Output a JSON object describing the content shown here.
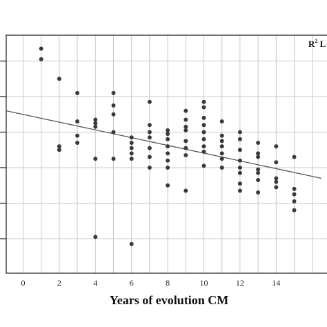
{
  "chart_data": {
    "type": "scatter",
    "xlabel": "Years of evolution CM",
    "ylabel": "",
    "x_ticks": [
      "0",
      "2",
      "4",
      "6",
      "8",
      "10",
      "12",
      "14"
    ],
    "xlim": [
      -1,
      16.5
    ],
    "ylim": [
      -1.2,
      6.2
    ],
    "grid": true,
    "annotation": {
      "text": "R",
      "sup": "2",
      "suffix": " L"
    },
    "trendline": {
      "x": [
        -1,
        16.5
      ],
      "y": [
        3.6,
        1.7
      ]
    },
    "colors": {
      "point": "#3a3a3a",
      "line": "#555555",
      "grid": "#c8c8c8",
      "frame": "#1a1a1a"
    },
    "points": [
      {
        "x": 1,
        "y": 5.35
      },
      {
        "x": 1,
        "y": 5.05
      },
      {
        "x": 2,
        "y": 4.5
      },
      {
        "x": 2,
        "y": 2.6
      },
      {
        "x": 2,
        "y": 2.5
      },
      {
        "x": 3,
        "y": 4.1
      },
      {
        "x": 3,
        "y": 3.3
      },
      {
        "x": 3,
        "y": 2.9
      },
      {
        "x": 3,
        "y": 2.7
      },
      {
        "x": 4,
        "y": 3.35
      },
      {
        "x": 4,
        "y": 3.25
      },
      {
        "x": 4,
        "y": 3.15
      },
      {
        "x": 4,
        "y": 2.25
      },
      {
        "x": 4,
        "y": 0.05
      },
      {
        "x": 5,
        "y": 4.1
      },
      {
        "x": 5,
        "y": 3.75
      },
      {
        "x": 5,
        "y": 3.5
      },
      {
        "x": 5,
        "y": 3.0
      },
      {
        "x": 5,
        "y": 2.25
      },
      {
        "x": 6,
        "y": 2.85
      },
      {
        "x": 6,
        "y": 2.7
      },
      {
        "x": 6,
        "y": 2.55
      },
      {
        "x": 6,
        "y": 2.4
      },
      {
        "x": 6,
        "y": 2.25
      },
      {
        "x": 6,
        "y": -0.15
      },
      {
        "x": 7,
        "y": 3.85
      },
      {
        "x": 7,
        "y": 3.2
      },
      {
        "x": 7,
        "y": 3.0
      },
      {
        "x": 7,
        "y": 2.85
      },
      {
        "x": 7,
        "y": 2.55
      },
      {
        "x": 7,
        "y": 2.3
      },
      {
        "x": 7,
        "y": 2.0
      },
      {
        "x": 8,
        "y": 3.05
      },
      {
        "x": 8,
        "y": 2.95
      },
      {
        "x": 8,
        "y": 2.8
      },
      {
        "x": 8,
        "y": 2.6
      },
      {
        "x": 8,
        "y": 2.4
      },
      {
        "x": 8,
        "y": 2.2
      },
      {
        "x": 8,
        "y": 2.0
      },
      {
        "x": 8,
        "y": 1.5
      },
      {
        "x": 9,
        "y": 3.6
      },
      {
        "x": 9,
        "y": 3.35
      },
      {
        "x": 9,
        "y": 3.15
      },
      {
        "x": 9,
        "y": 3.05
      },
      {
        "x": 9,
        "y": 2.75
      },
      {
        "x": 9,
        "y": 2.55
      },
      {
        "x": 9,
        "y": 2.35
      },
      {
        "x": 9,
        "y": 1.35
      },
      {
        "x": 10,
        "y": 3.85
      },
      {
        "x": 10,
        "y": 3.7
      },
      {
        "x": 10,
        "y": 3.4
      },
      {
        "x": 10,
        "y": 3.2
      },
      {
        "x": 10,
        "y": 3.0
      },
      {
        "x": 10,
        "y": 2.8
      },
      {
        "x": 10,
        "y": 2.6
      },
      {
        "x": 10,
        "y": 2.45
      },
      {
        "x": 10,
        "y": 2.05
      },
      {
        "x": 11,
        "y": 3.3
      },
      {
        "x": 11,
        "y": 2.9
      },
      {
        "x": 11,
        "y": 2.75
      },
      {
        "x": 11,
        "y": 2.6
      },
      {
        "x": 11,
        "y": 2.4
      },
      {
        "x": 11,
        "y": 2.25
      },
      {
        "x": 11,
        "y": 2.0
      },
      {
        "x": 12,
        "y": 3.0
      },
      {
        "x": 12,
        "y": 2.8
      },
      {
        "x": 12,
        "y": 2.5
      },
      {
        "x": 12,
        "y": 2.2
      },
      {
        "x": 12,
        "y": 2.0
      },
      {
        "x": 12,
        "y": 1.85
      },
      {
        "x": 12,
        "y": 1.55
      },
      {
        "x": 12,
        "y": 1.35
      },
      {
        "x": 13,
        "y": 2.7
      },
      {
        "x": 13,
        "y": 2.4
      },
      {
        "x": 13,
        "y": 2.3
      },
      {
        "x": 13,
        "y": 1.95
      },
      {
        "x": 13,
        "y": 1.85
      },
      {
        "x": 13,
        "y": 1.65
      },
      {
        "x": 13,
        "y": 1.3
      },
      {
        "x": 14,
        "y": 2.6
      },
      {
        "x": 14,
        "y": 2.15
      },
      {
        "x": 14,
        "y": 1.7
      },
      {
        "x": 14,
        "y": 1.6
      },
      {
        "x": 14,
        "y": 1.45
      },
      {
        "x": 15,
        "y": 2.3
      },
      {
        "x": 15,
        "y": 1.4
      },
      {
        "x": 15,
        "y": 1.25
      },
      {
        "x": 15,
        "y": 1.05
      },
      {
        "x": 15,
        "y": 0.8
      }
    ]
  }
}
